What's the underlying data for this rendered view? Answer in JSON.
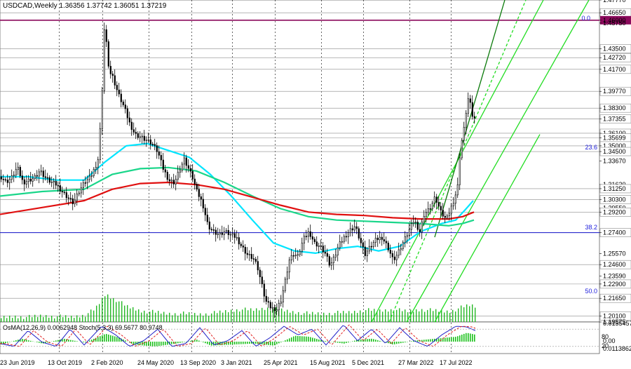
{
  "chart_data": {
    "type": "candlestick",
    "symbol_line": "USDCAD,Weekly  1.36356 1.37742 1.36051 1.37219",
    "ylim": [
      1.19575,
      1.4777
    ],
    "y_ticks": [
      "1.47770",
      "1.46650",
      "1.46000",
      "1.45750",
      "1.43500",
      "1.42720",
      "1.41700",
      "1.39770",
      "1.38300",
      "1.37355",
      "1.36100",
      "1.35699",
      "1.35000",
      "1.34500",
      "1.33670",
      "1.31620",
      "1.31250",
      "1.30300",
      "1.29550",
      "1.29200",
      "1.27400",
      "1.25570",
      "1.24600",
      "1.23590",
      "1.22900",
      "1.21650",
      "1.20100",
      "1.19575"
    ],
    "x_ticks": [
      "23 Jun 2019",
      "13 Oct 2019",
      "2 Feb 2020",
      "24 May 2020",
      "13 Sep 2020",
      "3 Jan 2021",
      "25 Apr 2021",
      "15 Aug 2021",
      "5 Dec 2021",
      "27 Mar 2022",
      "17 Jul 2022"
    ],
    "current_price": 1.37355,
    "key_levels": [
      1.4665,
      1.435,
      1.4272,
      1.417,
      1.3977,
      1.383,
      1.361,
      1.35699,
      1.35,
      1.345,
      1.3125,
      1.303,
      1.292,
      1.274,
      1.246,
      1.229,
      1.2165,
      1.201
    ],
    "highlight_level": {
      "label": "1.46000",
      "value": 1.46,
      "color": "#8b0a5c"
    },
    "blue_level": {
      "value": 1.274
    },
    "fib_labels": {
      "top": "0.0",
      "mid": "23.6",
      "lower": "38.2",
      "bottom": "50.0"
    },
    "price_path": [
      [
        0,
        1.323
      ],
      [
        8,
        1.318
      ],
      [
        16,
        1.322
      ],
      [
        24,
        1.331
      ],
      [
        32,
        1.318
      ],
      [
        40,
        1.32
      ],
      [
        48,
        1.322
      ],
      [
        56,
        1.328
      ],
      [
        64,
        1.322
      ],
      [
        72,
        1.318
      ],
      [
        80,
        1.316
      ],
      [
        88,
        1.31
      ],
      [
        96,
        1.305
      ],
      [
        104,
        1.3
      ],
      [
        112,
        1.31
      ],
      [
        120,
        1.318
      ],
      [
        128,
        1.322
      ],
      [
        134,
        1.33
      ],
      [
        140,
        1.34
      ],
      [
        145,
        1.4
      ],
      [
        148,
        1.452
      ],
      [
        151,
        1.44
      ],
      [
        155,
        1.415
      ],
      [
        160,
        1.41
      ],
      [
        168,
        1.395
      ],
      [
        176,
        1.384
      ],
      [
        184,
        1.37
      ],
      [
        192,
        1.36
      ],
      [
        200,
        1.358
      ],
      [
        208,
        1.355
      ],
      [
        216,
        1.352
      ],
      [
        224,
        1.345
      ],
      [
        232,
        1.33
      ],
      [
        240,
        1.32
      ],
      [
        248,
        1.318
      ],
      [
        256,
        1.33
      ],
      [
        262,
        1.338
      ],
      [
        268,
        1.33
      ],
      [
        274,
        1.322
      ],
      [
        280,
        1.31
      ],
      [
        288,
        1.3
      ],
      [
        296,
        1.28
      ],
      [
        304,
        1.275
      ],
      [
        312,
        1.272
      ],
      [
        320,
        1.275
      ],
      [
        328,
        1.272
      ],
      [
        336,
        1.27
      ],
      [
        344,
        1.262
      ],
      [
        352,
        1.255
      ],
      [
        360,
        1.252
      ],
      [
        366,
        1.245
      ],
      [
        372,
        1.23
      ],
      [
        378,
        1.214
      ],
      [
        386,
        1.208
      ],
      [
        394,
        1.207
      ],
      [
        400,
        1.215
      ],
      [
        406,
        1.232
      ],
      [
        412,
        1.25
      ],
      [
        418,
        1.255
      ],
      [
        424,
        1.253
      ],
      [
        432,
        1.268
      ],
      [
        440,
        1.275
      ],
      [
        448,
        1.265
      ],
      [
        456,
        1.262
      ],
      [
        464,
        1.255
      ],
      [
        470,
        1.245
      ],
      [
        476,
        1.252
      ],
      [
        482,
        1.262
      ],
      [
        490,
        1.27
      ],
      [
        498,
        1.276
      ],
      [
        506,
        1.28
      ],
      [
        514,
        1.265
      ],
      [
        520,
        1.255
      ],
      [
        528,
        1.262
      ],
      [
        536,
        1.268
      ],
      [
        544,
        1.27
      ],
      [
        552,
        1.262
      ],
      [
        560,
        1.25
      ],
      [
        566,
        1.255
      ],
      [
        574,
        1.265
      ],
      [
        582,
        1.275
      ],
      [
        590,
        1.285
      ],
      [
        598,
        1.275
      ],
      [
        604,
        1.29
      ],
      [
        612,
        1.295
      ],
      [
        620,
        1.305
      ],
      [
        628,
        1.292
      ],
      [
        636,
        1.285
      ],
      [
        642,
        1.295
      ],
      [
        648,
        1.305
      ],
      [
        652,
        1.315
      ],
      [
        656,
        1.35
      ],
      [
        660,
        1.36
      ],
      [
        664,
        1.38
      ],
      [
        668,
        1.395
      ],
      [
        672,
        1.378
      ],
      [
        678,
        1.372
      ]
    ],
    "series": [
      {
        "color": "#00e5ff",
        "values": [
          [
            0,
            1.323
          ],
          [
            40,
            1.323
          ],
          [
            80,
            1.32
          ],
          [
            120,
            1.32
          ],
          [
            150,
            1.336
          ],
          [
            180,
            1.35
          ],
          [
            210,
            1.352
          ],
          [
            240,
            1.346
          ],
          [
            270,
            1.34
          ],
          [
            300,
            1.325
          ],
          [
            330,
            1.306
          ],
          [
            360,
            1.285
          ],
          [
            390,
            1.265
          ],
          [
            420,
            1.258
          ],
          [
            450,
            1.256
          ],
          [
            480,
            1.26
          ],
          [
            510,
            1.262
          ],
          [
            540,
            1.258
          ],
          [
            570,
            1.262
          ],
          [
            600,
            1.275
          ],
          [
            630,
            1.282
          ],
          [
            650,
            1.285
          ],
          [
            665,
            1.295
          ],
          [
            675,
            1.302
          ]
        ]
      },
      {
        "color": "#1ad68a",
        "values": [
          [
            0,
            1.306
          ],
          [
            60,
            1.31
          ],
          [
            120,
            1.312
          ],
          [
            160,
            1.325
          ],
          [
            200,
            1.33
          ],
          [
            240,
            1.331
          ],
          [
            280,
            1.328
          ],
          [
            320,
            1.318
          ],
          [
            360,
            1.306
          ],
          [
            400,
            1.295
          ],
          [
            440,
            1.288
          ],
          [
            480,
            1.285
          ],
          [
            520,
            1.284
          ],
          [
            560,
            1.283
          ],
          [
            600,
            1.282
          ],
          [
            640,
            1.28
          ],
          [
            660,
            1.282
          ],
          [
            676,
            1.285
          ]
        ]
      },
      {
        "color": "#e01010",
        "values": [
          [
            0,
            1.29
          ],
          [
            60,
            1.296
          ],
          [
            120,
            1.302
          ],
          [
            160,
            1.312
          ],
          [
            200,
            1.317
          ],
          [
            240,
            1.318
          ],
          [
            280,
            1.316
          ],
          [
            320,
            1.312
          ],
          [
            360,
            1.305
          ],
          [
            400,
            1.298
          ],
          [
            440,
            1.292
          ],
          [
            480,
            1.29
          ],
          [
            520,
            1.289
          ],
          [
            560,
            1.287
          ],
          [
            600,
            1.286
          ],
          [
            640,
            1.286
          ],
          [
            660,
            1.288
          ],
          [
            676,
            1.292
          ]
        ]
      }
    ],
    "volume_profile": [
      [
        0,
        6
      ],
      [
        20,
        8
      ],
      [
        40,
        7
      ],
      [
        60,
        9
      ],
      [
        80,
        8
      ],
      [
        100,
        7
      ],
      [
        120,
        10
      ],
      [
        135,
        18
      ],
      [
        150,
        40
      ],
      [
        158,
        35
      ],
      [
        168,
        30
      ],
      [
        180,
        22
      ],
      [
        200,
        16
      ],
      [
        220,
        14
      ],
      [
        240,
        12
      ],
      [
        260,
        12
      ],
      [
        280,
        11
      ],
      [
        300,
        12
      ],
      [
        320,
        15
      ],
      [
        340,
        18
      ],
      [
        360,
        17
      ],
      [
        380,
        20
      ],
      [
        400,
        17
      ],
      [
        420,
        14
      ],
      [
        440,
        12
      ],
      [
        460,
        12
      ],
      [
        480,
        13
      ],
      [
        500,
        14
      ],
      [
        520,
        17
      ],
      [
        540,
        16
      ],
      [
        560,
        18
      ],
      [
        580,
        15
      ],
      [
        600,
        18
      ],
      [
        620,
        16
      ],
      [
        640,
        15
      ],
      [
        655,
        20
      ],
      [
        670,
        24
      ],
      [
        678,
        22
      ]
    ],
    "channel_lines": [
      {
        "from": [
          530,
          1.19575
        ],
        "to": [
          775,
          1.4777
        ],
        "color": "#22dd22"
      },
      {
        "from": [
          580,
          1.19575
        ],
        "to": [
          840,
          1.4777
        ],
        "color": "#22dd22"
      },
      {
        "from": [
          620,
          1.19575
        ],
        "to": [
          770,
          1.36
        ],
        "color": "#22dd22"
      },
      {
        "from": [
          555,
          1.19575
        ],
        "to": [
          750,
          1.4777
        ],
        "color": "#22dd22",
        "dashed": true
      },
      {
        "from": [
          620,
          1.27
        ],
        "to": [
          720,
          1.4777
        ],
        "color": "#0a7a0a"
      }
    ],
    "indicator_label": "OsMA(12,26,9) 0.0062948 Stoch(5,3,3) 69.5677 80.9748",
    "indicator_ticks": [
      "0.0155457",
      "0.00",
      "0.0113862"
    ],
    "stoch_levels": [
      "80",
      "20"
    ],
    "osma_profile": [
      [
        0,
        -3
      ],
      [
        30,
        3
      ],
      [
        60,
        -2
      ],
      [
        90,
        3
      ],
      [
        120,
        -1
      ],
      [
        150,
        8
      ],
      [
        170,
        4
      ],
      [
        190,
        -3
      ],
      [
        220,
        -5
      ],
      [
        250,
        -2
      ],
      [
        280,
        2
      ],
      [
        300,
        -4
      ],
      [
        330,
        -3
      ],
      [
        360,
        -2
      ],
      [
        390,
        -4
      ],
      [
        420,
        6
      ],
      [
        440,
        5
      ],
      [
        460,
        1
      ],
      [
        490,
        -2
      ],
      [
        510,
        2
      ],
      [
        530,
        3
      ],
      [
        560,
        -3
      ],
      [
        590,
        1
      ],
      [
        620,
        3
      ],
      [
        650,
        5
      ],
      [
        665,
        9
      ],
      [
        678,
        7
      ]
    ],
    "stoch_profile": [
      [
        0,
        30
      ],
      [
        20,
        20
      ],
      [
        40,
        75
      ],
      [
        60,
        35
      ],
      [
        80,
        20
      ],
      [
        100,
        80
      ],
      [
        120,
        25
      ],
      [
        145,
        90
      ],
      [
        165,
        60
      ],
      [
        185,
        20
      ],
      [
        205,
        40
      ],
      [
        225,
        80
      ],
      [
        245,
        20
      ],
      [
        265,
        30
      ],
      [
        285,
        85
      ],
      [
        305,
        25
      ],
      [
        325,
        40
      ],
      [
        345,
        75
      ],
      [
        365,
        20
      ],
      [
        385,
        50
      ],
      [
        405,
        90
      ],
      [
        425,
        60
      ],
      [
        445,
        80
      ],
      [
        465,
        25
      ],
      [
        490,
        95
      ],
      [
        510,
        40
      ],
      [
        530,
        80
      ],
      [
        550,
        30
      ],
      [
        570,
        85
      ],
      [
        590,
        40
      ],
      [
        610,
        20
      ],
      [
        630,
        60
      ],
      [
        650,
        90
      ],
      [
        665,
        88
      ],
      [
        678,
        75
      ]
    ]
  }
}
